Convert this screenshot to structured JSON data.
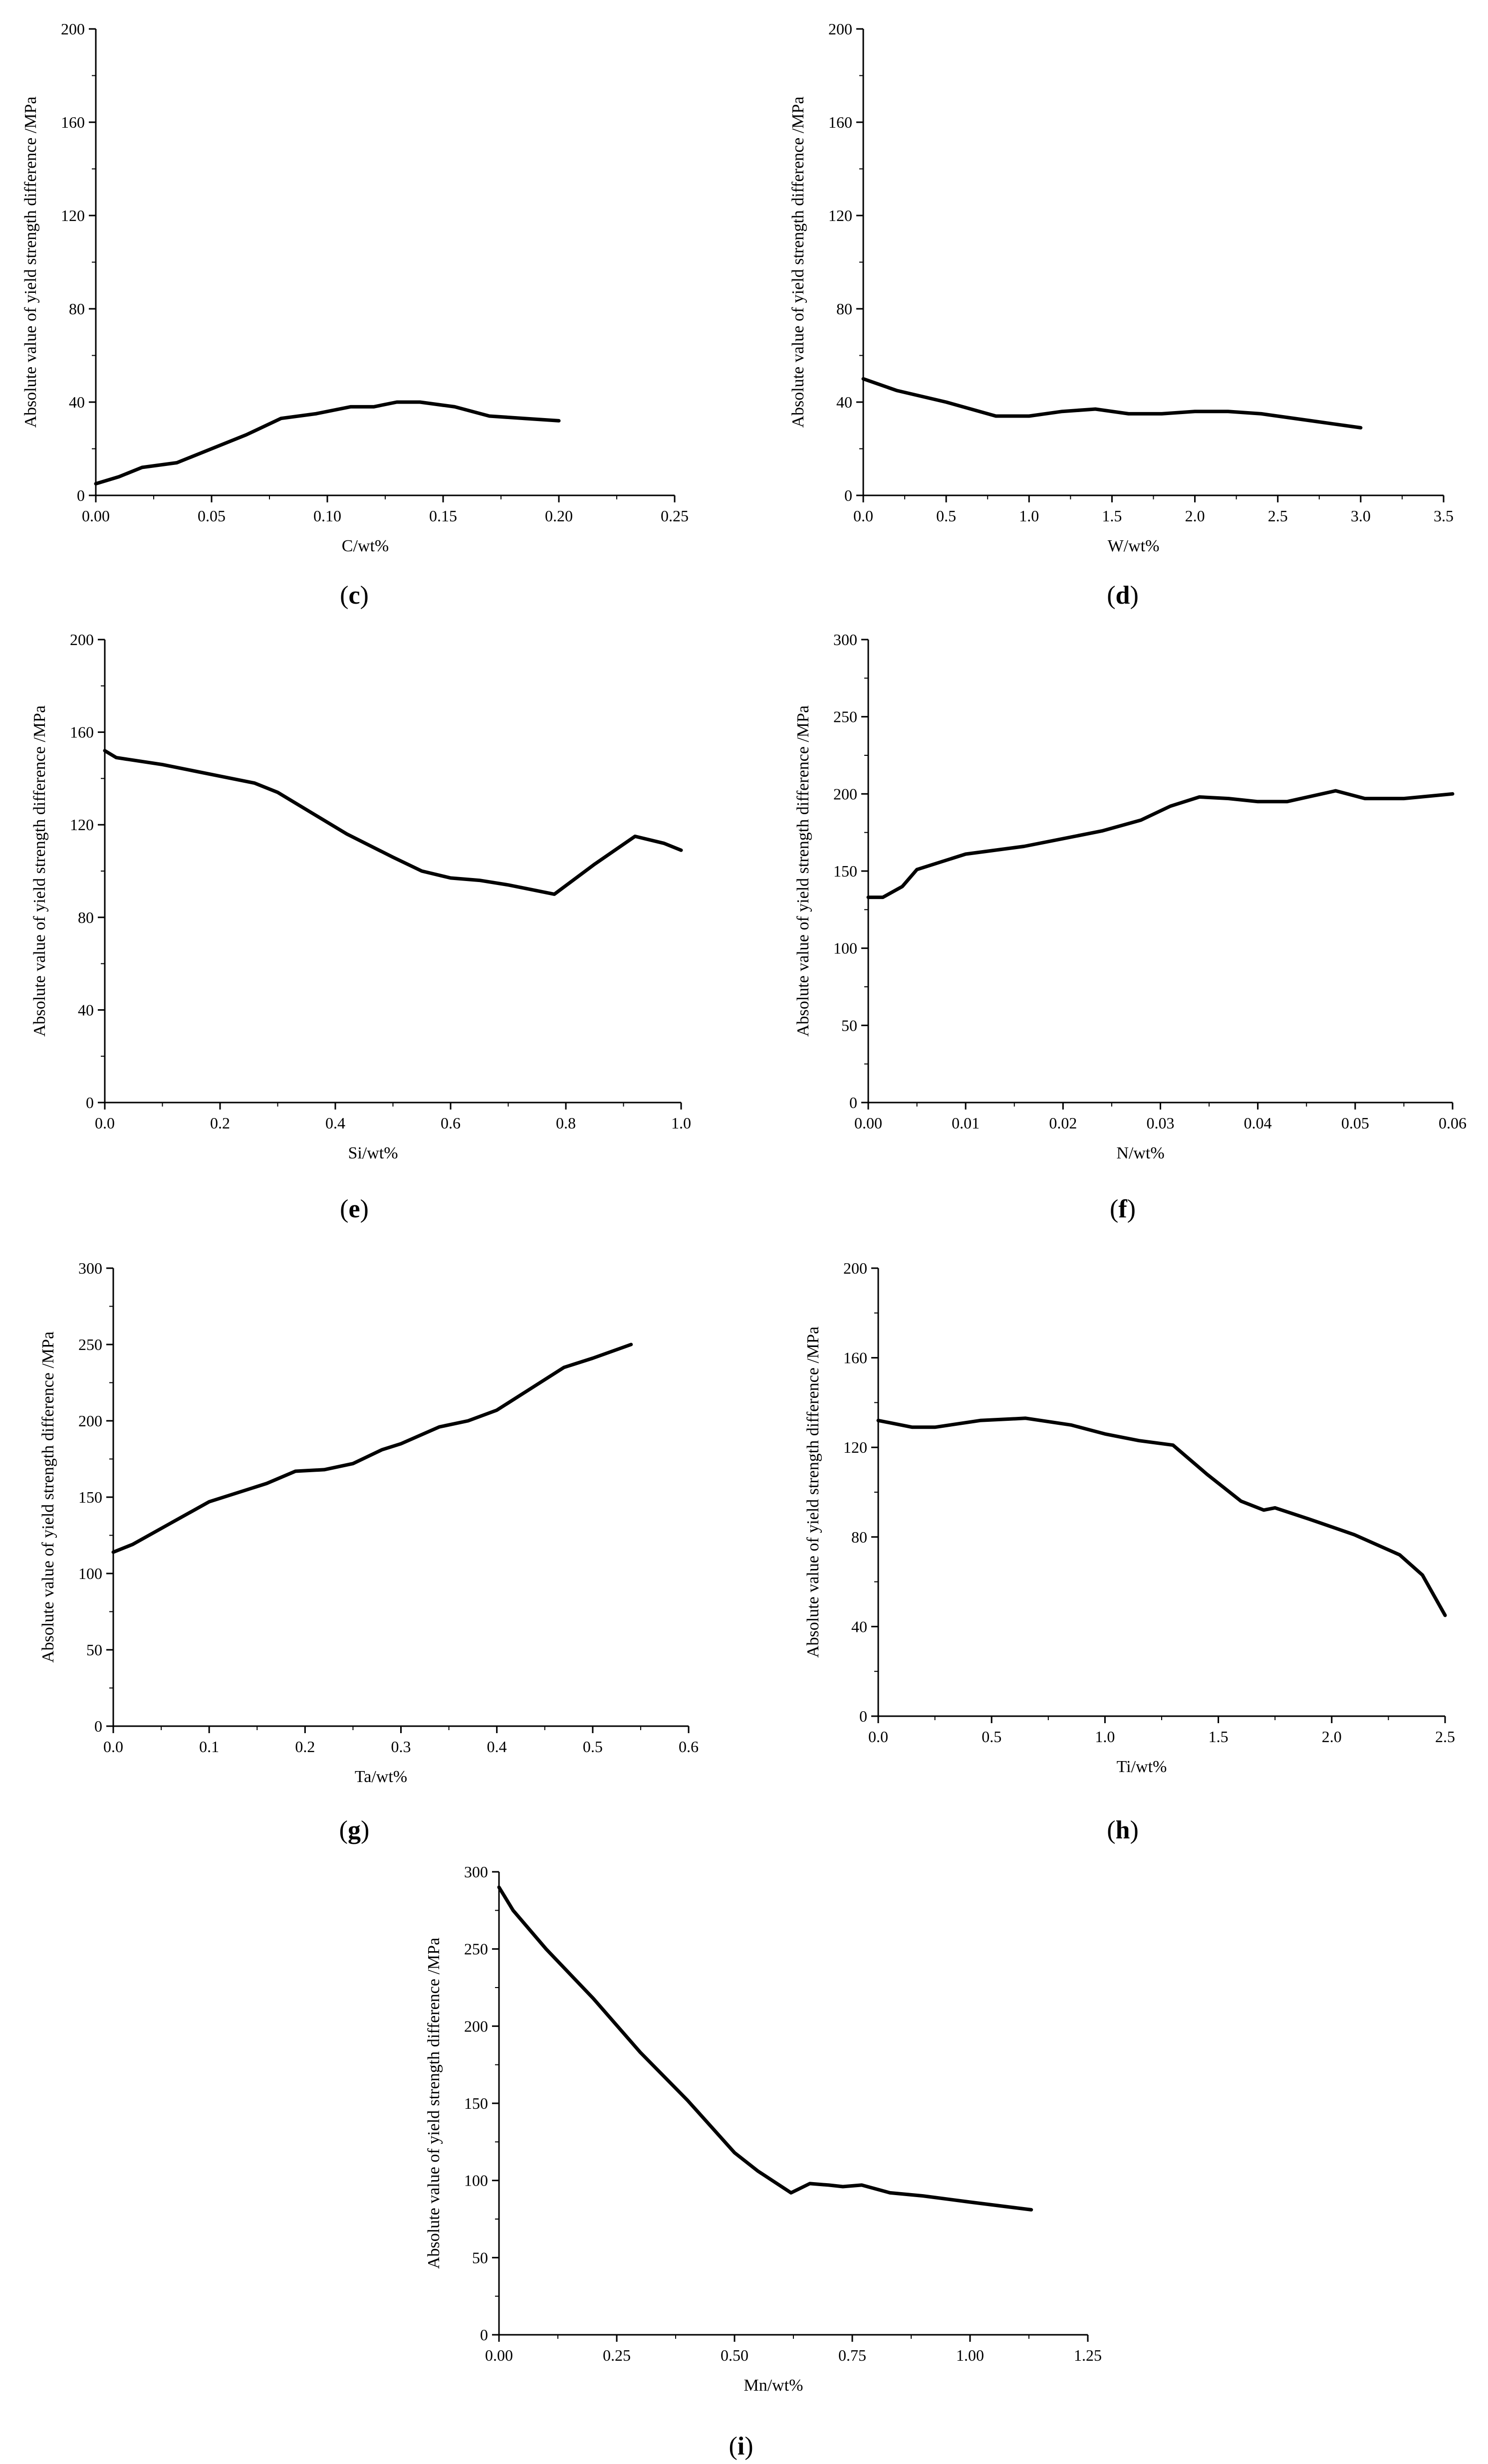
{
  "chart_data": [
    {
      "type": "line",
      "panel": "c",
      "xlabel": "C/wt%",
      "ylabel": "Absolute value of yield strength difference /MPa",
      "xlim": [
        0,
        0.25
      ],
      "ylim": [
        0,
        200
      ],
      "xticks": [
        "0.00",
        "0.05",
        "0.10",
        "0.15",
        "0.20",
        "0.25"
      ],
      "yticks": [
        "0",
        "40",
        "80",
        "120",
        "160",
        "200"
      ],
      "grid": false,
      "x": [
        0.0,
        0.01,
        0.02,
        0.035,
        0.05,
        0.065,
        0.08,
        0.095,
        0.11,
        0.12,
        0.13,
        0.14,
        0.155,
        0.17,
        0.185,
        0.2
      ],
      "y": [
        5,
        8,
        12,
        14,
        20,
        26,
        33,
        35,
        38,
        38,
        40,
        40,
        38,
        34,
        33,
        32
      ]
    },
    {
      "type": "line",
      "panel": "d",
      "xlabel": "W/wt%",
      "ylabel": "Absolute value of yield strength difference /MPa",
      "xlim": [
        0,
        3.5
      ],
      "ylim": [
        0,
        200
      ],
      "xticks": [
        "0.0",
        "0.5",
        "1.0",
        "1.5",
        "2.0",
        "2.5",
        "3.0",
        "3.5"
      ],
      "yticks": [
        "0",
        "40",
        "80",
        "120",
        "160",
        "200"
      ],
      "grid": false,
      "x": [
        0.0,
        0.2,
        0.5,
        0.8,
        1.0,
        1.2,
        1.4,
        1.6,
        1.8,
        2.0,
        2.2,
        2.4,
        2.7,
        3.0
      ],
      "y": [
        50,
        45,
        40,
        34,
        34,
        36,
        37,
        35,
        35,
        36,
        36,
        35,
        32,
        29
      ]
    },
    {
      "type": "line",
      "panel": "e",
      "xlabel": "Si/wt%",
      "ylabel": "Absolute value of yield strength difference /MPa",
      "xlim": [
        0,
        1.0
      ],
      "ylim": [
        0,
        200
      ],
      "xticks": [
        "0.0",
        "0.2",
        "0.4",
        "0.6",
        "0.8",
        "1.0"
      ],
      "yticks": [
        "0",
        "40",
        "80",
        "120",
        "160",
        "200"
      ],
      "grid": false,
      "x": [
        0.0,
        0.02,
        0.1,
        0.2,
        0.26,
        0.3,
        0.42,
        0.5,
        0.55,
        0.6,
        0.65,
        0.7,
        0.78,
        0.85,
        0.92,
        0.97,
        1.0
      ],
      "y": [
        152,
        149,
        146,
        141,
        138,
        134,
        116,
        106,
        100,
        97,
        96,
        94,
        90,
        103,
        115,
        112,
        109
      ]
    },
    {
      "type": "line",
      "panel": "f",
      "xlabel": "N/wt%",
      "ylabel": "Absolute value of yield strength difference /MPa",
      "xlim": [
        0,
        0.06
      ],
      "ylim": [
        0,
        300
      ],
      "xticks": [
        "0.00",
        "0.01",
        "0.02",
        "0.03",
        "0.04",
        "0.05",
        "0.06"
      ],
      "yticks": [
        "0",
        "50",
        "100",
        "150",
        "200",
        "250",
        "300"
      ],
      "grid": false,
      "x": [
        0.0,
        0.0015,
        0.0035,
        0.005,
        0.01,
        0.016,
        0.024,
        0.028,
        0.031,
        0.034,
        0.037,
        0.04,
        0.043,
        0.048,
        0.051,
        0.055,
        0.06
      ],
      "y": [
        133,
        133,
        140,
        151,
        161,
        166,
        176,
        183,
        192,
        198,
        197,
        195,
        195,
        202,
        197,
        197,
        200
      ]
    },
    {
      "type": "line",
      "panel": "g",
      "xlabel": "Ta/wt%",
      "ylabel": "Absolute value of yield strength difference /MPa",
      "xlim": [
        0,
        0.6
      ],
      "ylim": [
        0,
        300
      ],
      "xticks": [
        "0.0",
        "0.1",
        "0.2",
        "0.3",
        "0.4",
        "0.5",
        "0.6"
      ],
      "yticks": [
        "0",
        "50",
        "100",
        "150",
        "200",
        "250",
        "300"
      ],
      "grid": false,
      "x": [
        0.0,
        0.02,
        0.06,
        0.1,
        0.16,
        0.19,
        0.22,
        0.25,
        0.28,
        0.3,
        0.34,
        0.37,
        0.4,
        0.43,
        0.47,
        0.5,
        0.54
      ],
      "y": [
        114,
        119,
        133,
        147,
        159,
        167,
        168,
        172,
        181,
        185,
        196,
        200,
        207,
        219,
        235,
        241,
        250
      ]
    },
    {
      "type": "line",
      "panel": "h",
      "xlabel": "Ti/wt%",
      "ylabel": "Absolute value of yield strength difference /MPa",
      "xlim": [
        0,
        2.5
      ],
      "ylim": [
        0,
        200
      ],
      "xticks": [
        "0.0",
        "0.5",
        "1.0",
        "1.5",
        "2.0",
        "2.5"
      ],
      "yticks": [
        "0",
        "40",
        "80",
        "120",
        "160",
        "200"
      ],
      "grid": false,
      "x": [
        0.0,
        0.15,
        0.25,
        0.45,
        0.65,
        0.85,
        1.0,
        1.15,
        1.3,
        1.45,
        1.6,
        1.7,
        1.75,
        1.9,
        2.1,
        2.3,
        2.4,
        2.5
      ],
      "y": [
        132,
        129,
        129,
        132,
        133,
        130,
        126,
        123,
        121,
        108,
        96,
        92,
        93,
        88,
        81,
        72,
        63,
        45
      ]
    },
    {
      "type": "line",
      "panel": "i",
      "xlabel": "Mn/wt%",
      "ylabel": "Absolute value of yield strength difference /MPa",
      "xlim": [
        0,
        1.25
      ],
      "ylim": [
        0,
        300
      ],
      "xticks": [
        "0.00",
        "0.25",
        "0.50",
        "0.75",
        "1.00",
        "1.25"
      ],
      "yticks": [
        "0",
        "50",
        "100",
        "150",
        "200",
        "250",
        "300"
      ],
      "grid": false,
      "x": [
        0.0,
        0.03,
        0.1,
        0.2,
        0.3,
        0.4,
        0.5,
        0.55,
        0.62,
        0.66,
        0.7,
        0.73,
        0.77,
        0.83,
        0.9,
        1.0,
        1.13
      ],
      "y": [
        290,
        275,
        250,
        218,
        183,
        152,
        118,
        106,
        92,
        98,
        97,
        96,
        97,
        92,
        90,
        86,
        81
      ]
    }
  ],
  "captions": [
    "(c)",
    "(d)",
    "(e)",
    "(f)",
    "(g)",
    "(h)",
    "(i)"
  ],
  "colors": {
    "line": "#000000",
    "axis": "#000000",
    "background": "#ffffff"
  }
}
